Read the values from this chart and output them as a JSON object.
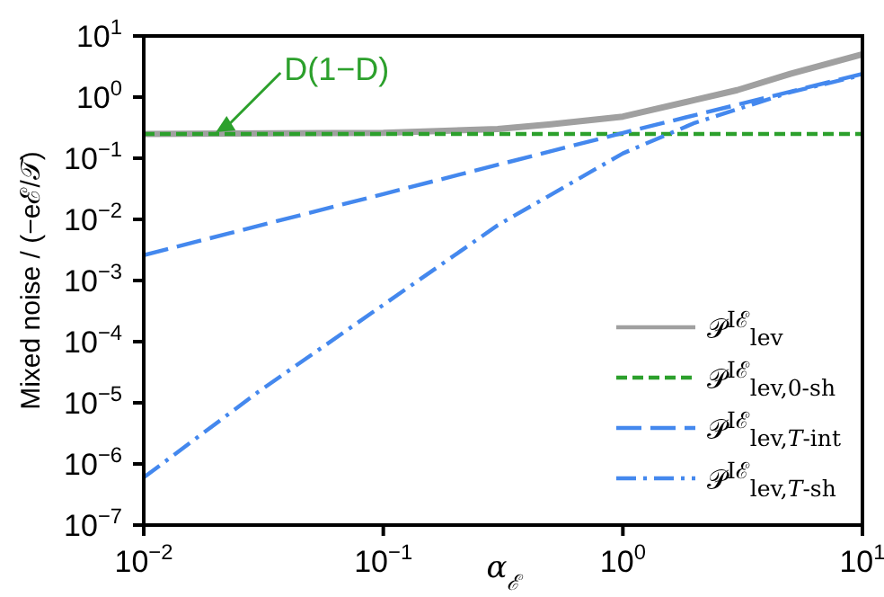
{
  "chart_data": {
    "type": "line",
    "xlabel": "α$_{ℰ}$",
    "ylabel": "Mixed noise / (−eℰ/𝒯)",
    "log": "xy",
    "legend": "bottom right",
    "xlim": [
      0.01,
      10
    ],
    "ylim": [
      1e-07,
      10
    ],
    "xticks": [
      {
        "value": 0.01,
        "label": "10$^{−2}$"
      },
      {
        "value": 0.1,
        "label": "10$^{−1}$"
      },
      {
        "value": 1,
        "label": "10$^{0}$"
      },
      {
        "value": 10,
        "label": "10$^{1}$"
      }
    ],
    "yticks": [
      {
        "value": 1e-07,
        "label": "10$^{−7}$"
      },
      {
        "value": 1e-06,
        "label": "10$^{−6}$"
      },
      {
        "value": 1e-05,
        "label": "10$^{−5}$"
      },
      {
        "value": 0.0001,
        "label": "10$^{−4}$"
      },
      {
        "value": 0.001,
        "label": "10$^{−3}$"
      },
      {
        "value": 0.01,
        "label": "10$^{−2}$"
      },
      {
        "value": 0.1,
        "label": "10$^{−1}$"
      },
      {
        "value": 1,
        "label": "10$^{0}$"
      },
      {
        "value": 10,
        "label": "10$^{1}$"
      }
    ],
    "annotations": [
      {
        "text": "D(1−D)",
        "x": 0.02,
        "y": 0.25
      }
    ],
    "series": [
      {
        "name": "𝒫$^{Iℰ}$$_{lev}$",
        "color": "#a0a0a0",
        "line_style": "solid",
        "x": [
          0.01,
          0.1,
          0.3,
          0.5,
          1,
          2,
          3,
          5,
          10
        ],
        "values": [
          0.25,
          0.26,
          0.3,
          0.36,
          0.48,
          0.9,
          1.3,
          2.4,
          5
        ]
      },
      {
        "name": "𝒫$^{Iℰ}$$_{lev,0-sh}$",
        "color": "#2ca02c",
        "line_style": "dashed",
        "x": [
          0.01,
          10
        ],
        "values": [
          0.25,
          0.25
        ]
      },
      {
        "name": "𝒫$^{Iℰ}$$_{lev,𝑇-int}$",
        "color": "#4488ee",
        "line_style": "longdash",
        "x": [
          0.01,
          0.1,
          1,
          10
        ],
        "values": [
          0.0026,
          0.026,
          0.26,
          2.4
        ]
      },
      {
        "name": "𝒫$^{Iℰ}$$_{lev,𝑇-sh}$",
        "color": "#4488ee",
        "line_style": "dashdot",
        "x": [
          0.01,
          0.03,
          0.1,
          0.3,
          1,
          2,
          5,
          10
        ],
        "values": [
          6e-07,
          1.5e-05,
          0.0004,
          0.008,
          0.12,
          0.38,
          1.2,
          2.3
        ]
      }
    ]
  }
}
